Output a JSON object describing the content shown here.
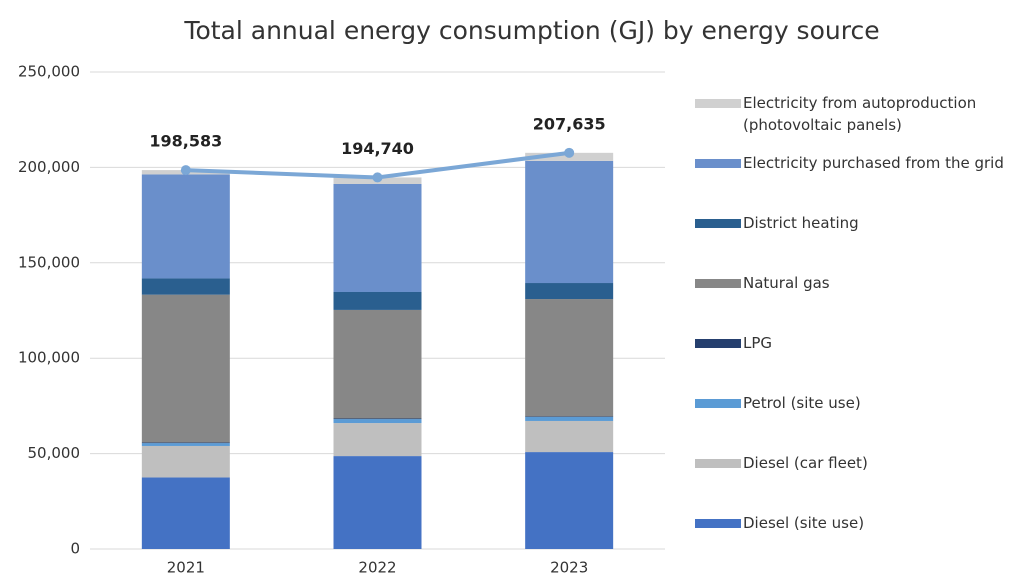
{
  "chart_data": {
    "type": "stacked_bar_line",
    "title": "Total annual energy consumption (GJ) by energy source",
    "categories": [
      "2021",
      "2022",
      "2023"
    ],
    "series": [
      {
        "name": "Diesel (site use)",
        "color": "#4472c4",
        "values": [
          37500,
          48700,
          50800
        ]
      },
      {
        "name": "Diesel (car fleet)",
        "color": "#bfbfbf",
        "values": [
          16500,
          17300,
          16300
        ]
      },
      {
        "name": "Petrol (site use)",
        "color": "#5b9bd5",
        "values": [
          1500,
          2100,
          2100
        ]
      },
      {
        "name": "LPG",
        "color": "#253f6e",
        "values": [
          300,
          300,
          300
        ]
      },
      {
        "name": "Natural gas",
        "color": "#878787",
        "values": [
          77500,
          56900,
          61500
        ]
      },
      {
        "name": "District heating",
        "color": "#2a5f8f",
        "values": [
          8500,
          9400,
          8400
        ]
      },
      {
        "name": "Electricity purchased from the grid",
        "color": "#6a8fcb",
        "values": [
          54500,
          56600,
          64000
        ]
      },
      {
        "name": "Electricity from autoproduction\n(photovoltaic panels)",
        "color": "#d0d0d0",
        "values": [
          2283,
          3440,
          4235
        ]
      }
    ],
    "totals": {
      "color": "#7ba7d6",
      "values": [
        198583,
        194740,
        207635
      ],
      "value_labels": [
        "198,583",
        "194,740",
        "207,635"
      ]
    },
    "ylim": [
      0,
      250000
    ],
    "yticks": [
      0,
      {
        "value": 50000,
        "label": "50,000"
      },
      {
        "value": 100000,
        "label": "100,000"
      },
      {
        "value": 150000,
        "label": "150,000"
      },
      {
        "value": 200000,
        "label": "200,000"
      },
      {
        "value": 250000,
        "label": "250,000"
      }
    ],
    "grid": true,
    "legend": "right"
  }
}
